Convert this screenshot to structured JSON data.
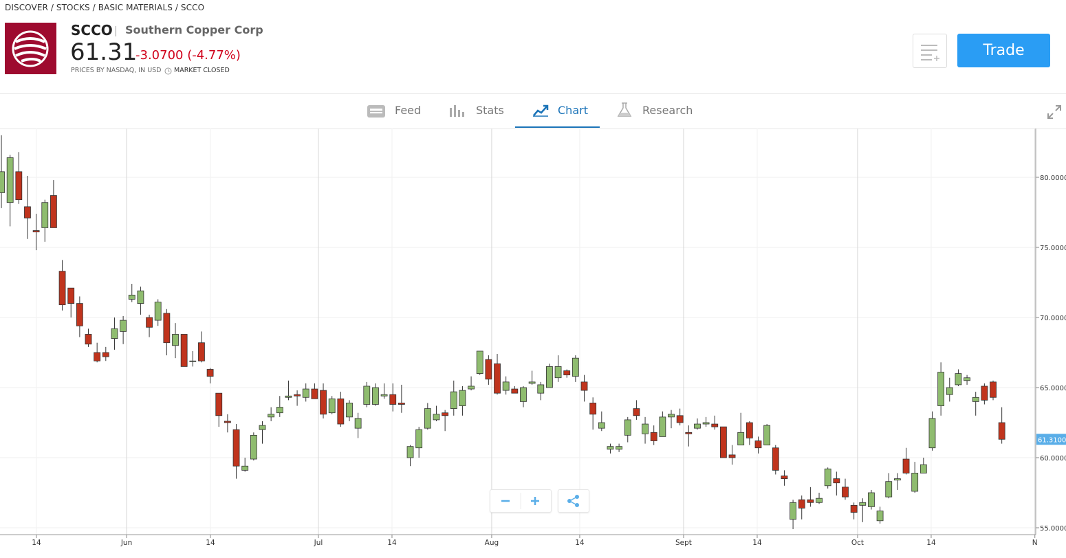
{
  "header": {
    "breadcrumb": "DISCOVER / STOCKS / BASIC MATERIALS / SCCO",
    "ticker": "SCCO",
    "company": "Southern Copper Corp",
    "price": "61.31",
    "change": "-3.0700 (-4.77%)",
    "source": "PRICES BY NASDAQ, IN USD",
    "status": "MARKET CLOSED",
    "trade_button": "Trade"
  },
  "tabs": [
    "Feed",
    "Stats",
    "Chart",
    "Research"
  ],
  "chart_data": {
    "type": "candlestick",
    "up_color": "#8fbc6f",
    "down_color": "#c0341d",
    "open": [
      78.9,
      78.2,
      80.4,
      77.9,
      76.2,
      76.4,
      78.7,
      73.3,
      72.1,
      71.0,
      68.8,
      67.5,
      67.5,
      68.5,
      69.0,
      71.3,
      71.0,
      70.0,
      69.8,
      70.3,
      68.0,
      68.8,
      66.9,
      68.2,
      66.3,
      64.6,
      62.6,
      62.0,
      59.1,
      59.9,
      62.0,
      62.9,
      63.2,
      64.3,
      64.5,
      64.3,
      64.9,
      64.8,
      63.2,
      64.2,
      62.9,
      62.1,
      63.8,
      63.8,
      64.4,
      64.5,
      63.9,
      60.0,
      60.7,
      62.1,
      62.7,
      63.2,
      63.5,
      63.7,
      64.9,
      66.0,
      67.0,
      66.7,
      64.8,
      64.9,
      64.0,
      65.3,
      64.6,
      65.0,
      65.7,
      66.2,
      65.8,
      65.4,
      63.9,
      62.1,
      60.6,
      60.6,
      61.6,
      63.5,
      61.7,
      61.8,
      61.5,
      62.9,
      63.0,
      61.8,
      62.1,
      62.4,
      62.4,
      62.2,
      60.2,
      60.9,
      62.5,
      61.2,
      60.9,
      60.7,
      58.7,
      55.6,
      57.0,
      57.0,
      56.8,
      58.0,
      58.5,
      57.9,
      56.6,
      56.6,
      56.5,
      55.5,
      57.2,
      58.4,
      59.9,
      57.6,
      58.9,
      60.7,
      63.7,
      64.5,
      65.2,
      65.5,
      64.0,
      65.1,
      65.4,
      62.5
    ],
    "high": [
      83.0,
      81.6,
      81.8,
      80.1,
      77.4,
      78.4,
      79.8,
      74.1,
      72.1,
      71.5,
      69.2,
      68.2,
      67.9,
      70.0,
      70.1,
      72.4,
      72.2,
      70.2,
      71.3,
      70.6,
      69.6,
      68.8,
      67.6,
      69.0,
      66.4,
      64.6,
      63.1,
      62.4,
      60.0,
      61.8,
      62.6,
      63.6,
      64.4,
      65.5,
      64.8,
      65.3,
      65.3,
      65.3,
      64.4,
      64.7,
      64.1,
      63.2,
      65.4,
      65.3,
      65.3,
      65.3,
      65.2,
      60.9,
      62.2,
      63.9,
      63.7,
      63.4,
      65.5,
      65.1,
      65.8,
      67.6,
      67.3,
      67.4,
      65.8,
      65.1,
      65.1,
      66.2,
      65.4,
      66.7,
      67.3,
      66.3,
      67.3,
      65.9,
      64.3,
      63.3,
      61.0,
      61.0,
      62.9,
      64.1,
      62.9,
      62.3,
      63.3,
      63.4,
      63.5,
      62.3,
      62.8,
      62.9,
      63.0,
      62.2,
      60.9,
      63.2,
      62.6,
      61.5,
      62.4,
      60.9,
      59.1,
      57.0,
      57.3,
      57.9,
      57.5,
      59.3,
      59.0,
      58.5,
      56.8,
      57.1,
      57.7,
      56.5,
      58.9,
      58.9,
      60.7,
      59.7,
      60.0,
      63.3,
      66.8,
      65.7,
      66.3,
      65.9,
      64.7,
      65.3,
      65.5,
      63.6
    ],
    "low": [
      77.8,
      76.5,
      78.1,
      75.6,
      74.8,
      75.4,
      76.4,
      70.5,
      70.0,
      68.6,
      67.9,
      66.8,
      66.9,
      67.7,
      68.1,
      71.1,
      70.2,
      68.6,
      69.4,
      67.3,
      67.1,
      66.5,
      66.5,
      66.8,
      65.3,
      62.2,
      61.8,
      58.5,
      59.0,
      59.8,
      61.0,
      62.6,
      62.9,
      64.1,
      63.7,
      64.0,
      64.2,
      62.8,
      63.1,
      62.2,
      62.6,
      61.4,
      63.6,
      63.7,
      64.2,
      63.3,
      63.2,
      59.4,
      60.0,
      62.0,
      62.6,
      61.9,
      63.0,
      63.0,
      64.8,
      65.9,
      65.2,
      64.5,
      64.5,
      64.6,
      63.6,
      65.2,
      64.1,
      65.0,
      65.4,
      65.7,
      65.4,
      64.0,
      62.0,
      61.9,
      60.3,
      60.4,
      61.1,
      62.7,
      61.0,
      60.9,
      61.5,
      62.1,
      62.3,
      60.8,
      62.0,
      62.2,
      62.0,
      60.0,
      59.5,
      60.9,
      60.9,
      60.3,
      60.9,
      58.8,
      58.0,
      54.9,
      55.6,
      56.5,
      56.7,
      57.8,
      57.3,
      57.0,
      55.6,
      55.4,
      56.3,
      55.3,
      57.1,
      57.7,
      58.8,
      57.5,
      58.9,
      60.5,
      63.0,
      64.0,
      65.1,
      65.2,
      63.0,
      63.8,
      64.1,
      61.0
    ],
    "close": [
      80.4,
      81.4,
      78.4,
      77.1,
      76.1,
      78.2,
      76.4,
      70.9,
      71.0,
      69.4,
      68.1,
      66.9,
      67.2,
      69.2,
      69.8,
      71.6,
      71.9,
      69.3,
      71.1,
      68.2,
      68.8,
      66.5,
      66.9,
      66.9,
      65.8,
      63.0,
      62.5,
      59.4,
      59.4,
      61.6,
      62.3,
      63.1,
      63.6,
      64.4,
      64.4,
      64.9,
      64.2,
      63.1,
      64.2,
      62.4,
      63.9,
      62.8,
      65.1,
      65.0,
      64.5,
      63.8,
      63.8,
      60.8,
      62.0,
      63.5,
      63.1,
      63.0,
      64.7,
      64.8,
      65.1,
      67.6,
      65.6,
      64.6,
      65.4,
      64.6,
      65.0,
      65.4,
      65.2,
      66.5,
      66.5,
      65.9,
      67.1,
      64.8,
      63.1,
      62.5,
      60.8,
      60.8,
      62.7,
      63.0,
      62.4,
      61.2,
      62.9,
      63.1,
      62.5,
      61.7,
      62.4,
      62.5,
      62.2,
      60.0,
      60.0,
      61.8,
      61.4,
      60.7,
      62.3,
      59.1,
      58.5,
      56.8,
      56.4,
      56.8,
      57.1,
      59.2,
      58.2,
      57.2,
      56.1,
      56.8,
      57.5,
      56.2,
      58.3,
      58.5,
      58.9,
      58.9,
      59.5,
      62.8,
      66.1,
      65.0,
      66.0,
      65.7,
      64.3,
      64.1,
      64.3,
      61.31
    ],
    "xlim": [
      -0.16,
      118.9
    ],
    "xticks": [
      {
        "value": 4.03,
        "label": "14"
      },
      {
        "value": 14.39,
        "label": "Jun"
      },
      {
        "value": 24.03,
        "label": "14"
      },
      {
        "value": 36.44,
        "label": "Jul"
      },
      {
        "value": 44.9,
        "label": "14"
      },
      {
        "value": 56.36,
        "label": "Aug"
      },
      {
        "value": 66.48,
        "label": "14"
      },
      {
        "value": 78.42,
        "label": "Sept"
      },
      {
        "value": 86.88,
        "label": "14"
      },
      {
        "value": 98.42,
        "label": "Oct"
      },
      {
        "value": 106.88,
        "label": "14"
      },
      {
        "value": 118.8,
        "label": "N"
      }
    ],
    "ylim": [
      54.51,
      83.48
    ],
    "yticks": [
      {
        "value": 55,
        "label": "55.0000"
      },
      {
        "value": 60,
        "label": "60.0000"
      },
      {
        "value": 65,
        "label": "65.0000"
      },
      {
        "value": 70,
        "label": "70.0000"
      },
      {
        "value": 75,
        "label": "75.0000"
      },
      {
        "value": 80,
        "label": "80.0000"
      }
    ],
    "last_price": {
      "value": 61.31,
      "label": "61.3100"
    },
    "grid": true
  }
}
